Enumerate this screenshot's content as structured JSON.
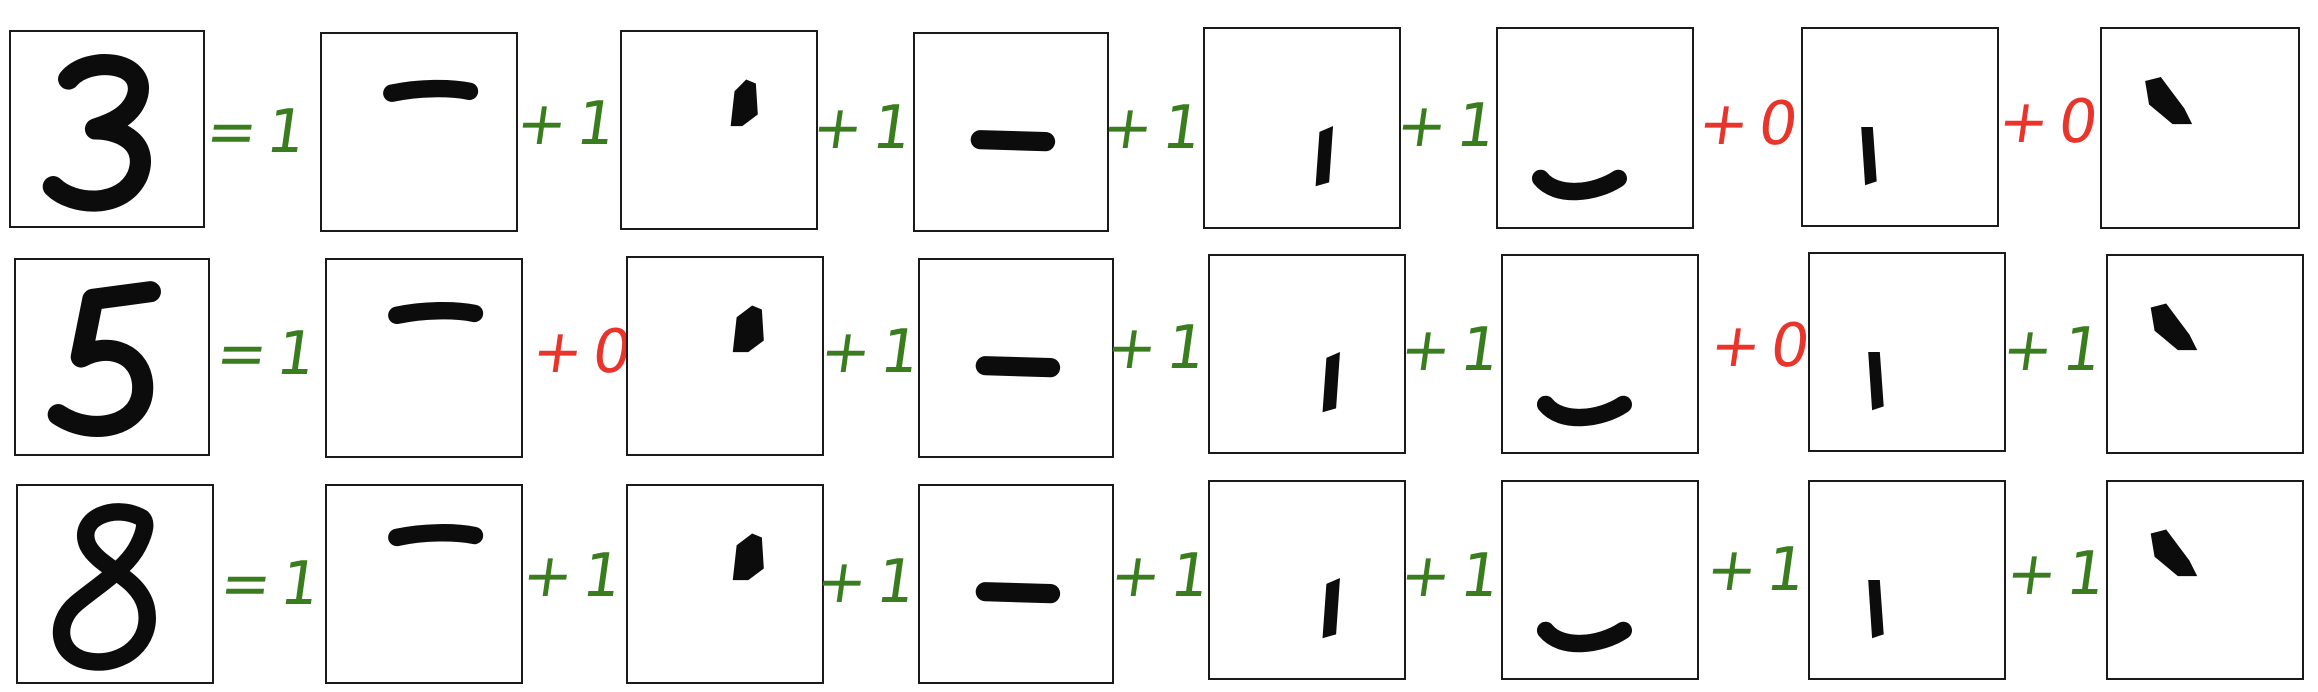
{
  "colors": {
    "match": "#3a7d1e",
    "miss": "#e8342a",
    "ink": "#0c0c0c"
  },
  "rows": [
    {
      "digit": "3",
      "total_op": "=",
      "total_value": "1",
      "terms": [
        {
          "part": "top-bar"
        },
        {
          "op": "+",
          "value": "1",
          "part": "upper-right-blob"
        },
        {
          "op": "+",
          "value": "1",
          "part": "middle-bar"
        },
        {
          "op": "+",
          "value": "1",
          "part": "lower-right-stroke"
        },
        {
          "op": "+",
          "value": "1",
          "part": "bottom-curve"
        },
        {
          "op": "+",
          "value": "0",
          "part": "lower-left-stroke"
        },
        {
          "op": "+",
          "value": "0",
          "part": "upper-left-blob"
        }
      ]
    },
    {
      "digit": "5",
      "total_op": "=",
      "total_value": "1",
      "terms": [
        {
          "part": "top-bar"
        },
        {
          "op": "+",
          "value": "0",
          "part": "upper-right-blob"
        },
        {
          "op": "+",
          "value": "1",
          "part": "middle-bar"
        },
        {
          "op": "+",
          "value": "1",
          "part": "lower-right-stroke"
        },
        {
          "op": "+",
          "value": "1",
          "part": "bottom-curve"
        },
        {
          "op": "+",
          "value": "0",
          "part": "lower-left-stroke"
        },
        {
          "op": "+",
          "value": "1",
          "part": "upper-left-blob"
        }
      ]
    },
    {
      "digit": "8",
      "total_op": "=",
      "total_value": "1",
      "terms": [
        {
          "part": "top-bar"
        },
        {
          "op": "+",
          "value": "1",
          "part": "upper-right-blob"
        },
        {
          "op": "+",
          "value": "1",
          "part": "middle-bar"
        },
        {
          "op": "+",
          "value": "1",
          "part": "lower-right-stroke"
        },
        {
          "op": "+",
          "value": "1",
          "part": "bottom-curve"
        },
        {
          "op": "+",
          "value": "1",
          "part": "lower-left-stroke"
        },
        {
          "op": "+",
          "value": "1",
          "part": "upper-left-blob"
        }
      ]
    }
  ]
}
